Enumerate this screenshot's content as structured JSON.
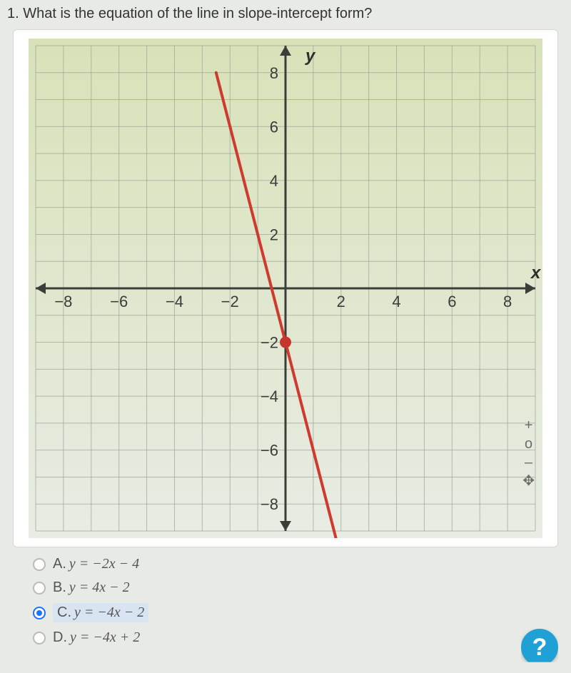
{
  "question": {
    "number": "1.",
    "text": "What is the equation of the line in slope-intercept form?"
  },
  "chart": {
    "type": "line",
    "background_top_color": "#d8e2b8",
    "background_bottom_color": "#e8ece4",
    "grid_color": "#9aa397",
    "axis_color": "#3a3d38",
    "line_color": "#cf3a2f",
    "line_width": 4,
    "point_color": "#c7362c",
    "point_radius": 8,
    "xlim": [
      -9,
      9
    ],
    "ylim": [
      -9,
      9
    ],
    "grid_step": 1,
    "xticks": [
      -8,
      -6,
      -4,
      -2,
      2,
      4,
      6,
      8
    ],
    "yticks": [
      -8,
      -6,
      -4,
      -2,
      2,
      4,
      6,
      8
    ],
    "x_axis_label": "x",
    "y_axis_label": "y",
    "line_points": [
      [
        -2.5,
        8
      ],
      [
        2,
        -10
      ]
    ],
    "marked_point": [
      0,
      -2
    ],
    "tick_fontsize": 22,
    "axis_label_fontsize": 24
  },
  "zoom": {
    "plus": "+",
    "circle": "o",
    "minus": "–",
    "move": "✥"
  },
  "answers": {
    "options": [
      {
        "key": "A",
        "prefix": "A.",
        "expr": "y = −2x − 4",
        "selected": false
      },
      {
        "key": "B",
        "prefix": "B.",
        "expr": "y = 4x − 2",
        "selected": false
      },
      {
        "key": "C",
        "prefix": "C.",
        "expr": "y = −4x − 2",
        "selected": true
      },
      {
        "key": "D",
        "prefix": "D.",
        "expr": "y = −4x + 2",
        "selected": false
      }
    ]
  },
  "help_label": "?"
}
